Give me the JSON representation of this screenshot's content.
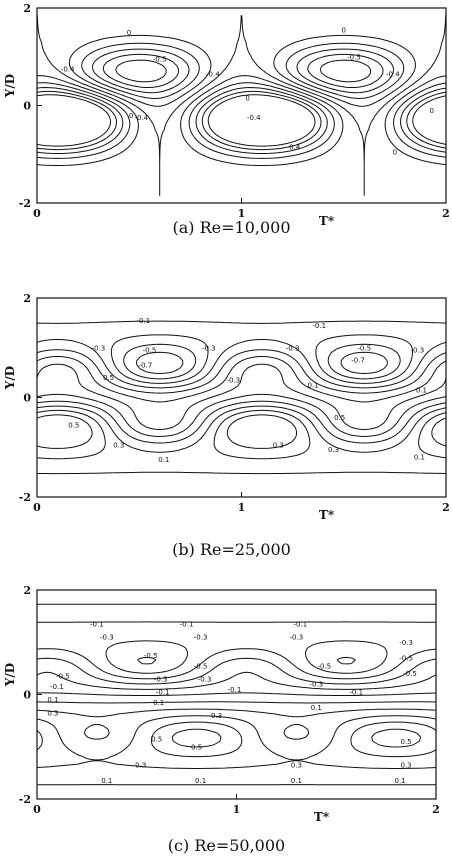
{
  "chart_data": [
    {
      "type": "contour",
      "caption": "(a)  Re=10,000",
      "xlabel": "T*",
      "ylabel": "Y/D",
      "xlim": [
        0,
        2
      ],
      "ylim": [
        -2,
        2
      ],
      "xticks": [
        "0",
        "1",
        "2"
      ],
      "yticks": [
        "2",
        "0",
        "-2"
      ],
      "contour_labels": [
        {
          "text": "0",
          "x": 0.45,
          "y": 1.5
        },
        {
          "text": "-0.4",
          "x": 0.15,
          "y": 0.75
        },
        {
          "text": "-0.5",
          "x": 0.6,
          "y": 0.95
        },
        {
          "text": "-0.4",
          "x": 0.86,
          "y": 0.65
        },
        {
          "text": "-0.4",
          "x": 0.51,
          "y": -0.25
        },
        {
          "text": "0",
          "x": 0.46,
          "y": -0.2
        },
        {
          "text": "0",
          "x": 1.03,
          "y": 0.15
        },
        {
          "text": "0",
          "x": 1.5,
          "y": 1.55
        },
        {
          "text": "-0.5",
          "x": 1.55,
          "y": 1.0
        },
        {
          "text": "-0.4",
          "x": 1.74,
          "y": 0.65
        },
        {
          "text": "-0.4",
          "x": 1.06,
          "y": -0.25
        },
        {
          "text": "0.4",
          "x": 1.26,
          "y": -0.85
        },
        {
          "text": "0",
          "x": 1.75,
          "y": -0.95
        },
        {
          "text": "0",
          "x": 1.93,
          "y": -0.1
        }
      ]
    },
    {
      "type": "contour",
      "caption": "(b)  Re=25,000",
      "xlabel": "T*",
      "ylabel": "Y/D",
      "xlim": [
        0,
        2
      ],
      "ylim": [
        -2,
        2
      ],
      "xticks": [
        "0",
        "1",
        "2"
      ],
      "yticks": [
        "2",
        "0",
        "-2"
      ],
      "contour_labels": [
        {
          "text": "-0.1",
          "x": 0.52,
          "y": 1.55
        },
        {
          "text": "-0.1",
          "x": 1.38,
          "y": 1.45
        },
        {
          "text": "-0.3",
          "x": 0.3,
          "y": 1.0
        },
        {
          "text": "-0.5",
          "x": 0.55,
          "y": 0.95
        },
        {
          "text": "-0.7",
          "x": 0.53,
          "y": 0.65
        },
        {
          "text": "-0.3",
          "x": 0.84,
          "y": 1.0
        },
        {
          "text": "-0.3",
          "x": 1.25,
          "y": 1.0
        },
        {
          "text": "-0.5",
          "x": 1.6,
          "y": 1.0
        },
        {
          "text": "-0.7",
          "x": 1.57,
          "y": 0.75
        },
        {
          "text": "-0.3",
          "x": 1.86,
          "y": 0.95
        },
        {
          "text": "0.5",
          "x": 0.35,
          "y": 0.4
        },
        {
          "text": "-0.3",
          "x": 0.96,
          "y": 0.35
        },
        {
          "text": "0.1",
          "x": 1.35,
          "y": 0.25
        },
        {
          "text": "0.1",
          "x": 1.88,
          "y": 0.15
        },
        {
          "text": "0.5",
          "x": 0.18,
          "y": -0.55
        },
        {
          "text": "0.3",
          "x": 0.4,
          "y": -0.95
        },
        {
          "text": "0.1",
          "x": 0.62,
          "y": -1.25
        },
        {
          "text": "0.5",
          "x": 1.48,
          "y": -0.4
        },
        {
          "text": "0.3",
          "x": 1.18,
          "y": -0.95
        },
        {
          "text": "0.3",
          "x": 1.45,
          "y": -1.05
        },
        {
          "text": "0.1",
          "x": 1.87,
          "y": -1.2
        }
      ]
    },
    {
      "type": "contour",
      "caption": "(c)  Re=50,000",
      "xlabel": "T*",
      "ylabel": "Y/D",
      "xlim": [
        0,
        2
      ],
      "ylim": [
        -2,
        2
      ],
      "xticks": [
        "0",
        "1",
        "2"
      ],
      "yticks": [
        "2",
        "0",
        "-2"
      ],
      "contour_labels": [
        {
          "text": "-0.1",
          "x": 0.3,
          "y": 1.35
        },
        {
          "text": "-0.1",
          "x": 0.75,
          "y": 1.35
        },
        {
          "text": "-0.1",
          "x": 1.32,
          "y": 1.35
        },
        {
          "text": "-0.3",
          "x": 0.35,
          "y": 1.1
        },
        {
          "text": "-0.3",
          "x": 0.82,
          "y": 1.1
        },
        {
          "text": "-0.3",
          "x": 1.3,
          "y": 1.1
        },
        {
          "text": "-0.3",
          "x": 1.85,
          "y": 1.0
        },
        {
          "text": "-0.5",
          "x": 0.57,
          "y": 0.75
        },
        {
          "text": "-0.5",
          "x": 1.85,
          "y": 0.7
        },
        {
          "text": "-0.5",
          "x": 0.13,
          "y": 0.35
        },
        {
          "text": "-0.5",
          "x": 0.82,
          "y": 0.55
        },
        {
          "text": "-0.5",
          "x": 1.44,
          "y": 0.55
        },
        {
          "text": "-0.5",
          "x": 1.87,
          "y": 0.4
        },
        {
          "text": "-0.3",
          "x": 0.62,
          "y": 0.3
        },
        {
          "text": "-0.3",
          "x": 0.84,
          "y": 0.3
        },
        {
          "text": "-0.3",
          "x": 1.4,
          "y": 0.2
        },
        {
          "text": "-0.1",
          "x": 0.1,
          "y": 0.15
        },
        {
          "text": "-0.1",
          "x": 0.63,
          "y": 0.05
        },
        {
          "text": "-0.1",
          "x": 0.99,
          "y": 0.1
        },
        {
          "text": "-0.1",
          "x": 1.6,
          "y": 0.05
        },
        {
          "text": "0.1",
          "x": 0.08,
          "y": -0.1
        },
        {
          "text": "0.1",
          "x": 0.61,
          "y": -0.15
        },
        {
          "text": "0.1",
          "x": 1.4,
          "y": -0.25
        },
        {
          "text": "0.3",
          "x": 0.08,
          "y": -0.35
        },
        {
          "text": "0.3",
          "x": 0.9,
          "y": -0.4
        },
        {
          "text": "0.5",
          "x": 0.6,
          "y": -0.85
        },
        {
          "text": "0.5",
          "x": 0.8,
          "y": -1.0
        },
        {
          "text": "0.5",
          "x": 1.85,
          "y": -0.9
        },
        {
          "text": "0.3",
          "x": 0.52,
          "y": -1.35
        },
        {
          "text": "0.3",
          "x": 1.3,
          "y": -1.35
        },
        {
          "text": "0.3",
          "x": 1.85,
          "y": -1.35
        },
        {
          "text": "0.1",
          "x": 0.35,
          "y": -1.65
        },
        {
          "text": "0.1",
          "x": 0.82,
          "y": -1.65
        },
        {
          "text": "0.1",
          "x": 1.3,
          "y": -1.65
        },
        {
          "text": "0.1",
          "x": 1.82,
          "y": -1.65
        }
      ]
    }
  ]
}
